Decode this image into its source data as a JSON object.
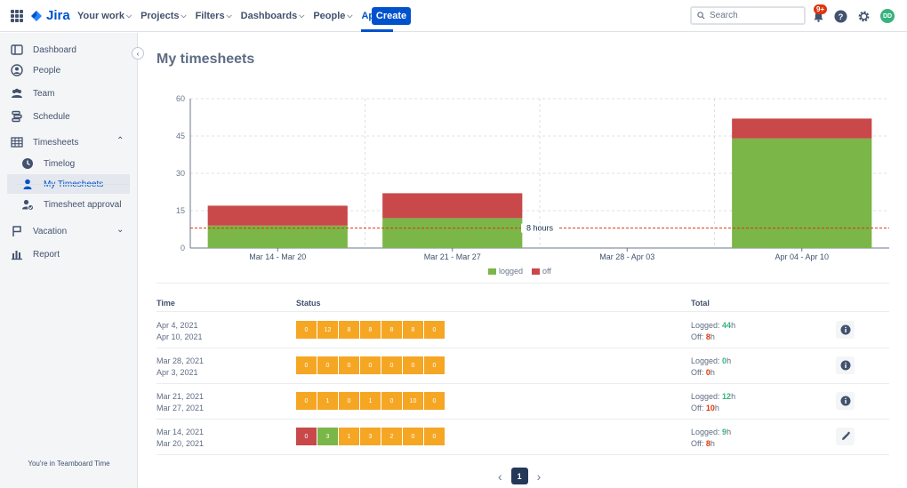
{
  "topbar": {
    "logo_text": "Jira",
    "nav": [
      {
        "label": "Your work",
        "chevron": true
      },
      {
        "label": "Projects",
        "chevron": true
      },
      {
        "label": "Filters",
        "chevron": true
      },
      {
        "label": "Dashboards",
        "chevron": true
      },
      {
        "label": "People",
        "chevron": true
      },
      {
        "label": "Apps",
        "chevron": true,
        "active": true
      }
    ],
    "create_label": "Create",
    "search_placeholder": "Search",
    "notification_badge": "9+",
    "avatar_initials": "DD"
  },
  "sidebar": {
    "items": [
      {
        "label": "Dashboard",
        "icon": "dashboard-icon"
      },
      {
        "label": "People",
        "icon": "person-circle-icon"
      },
      {
        "label": "Team",
        "icon": "team-icon"
      },
      {
        "label": "Schedule",
        "icon": "schedule-icon"
      },
      {
        "label": "Timesheets",
        "icon": "table-icon",
        "expanded": true
      },
      {
        "label": "Timelog",
        "icon": "clock-icon"
      },
      {
        "label": "My Timesheets",
        "icon": "person-icon",
        "selected": true
      },
      {
        "label": "Timesheet approval",
        "icon": "person-check-icon"
      },
      {
        "label": "Vacation",
        "icon": "flag-icon"
      },
      {
        "label": "Report",
        "icon": "bar-chart-icon"
      }
    ],
    "footer": "You're in Teamboard Time"
  },
  "main": {
    "title": "My timesheets"
  },
  "chart_data": {
    "type": "bar",
    "stacked": true,
    "categories": [
      "Mar 14 - Mar 20",
      "Mar 21 - Mar 27",
      "Mar 28 - Apr 03",
      "Apr 04 - Apr 10"
    ],
    "series": [
      {
        "name": "logged",
        "values": [
          9,
          12,
          0,
          44
        ],
        "color": "#7ab648"
      },
      {
        "name": "off",
        "values": [
          8,
          10,
          0,
          8
        ],
        "color": "#c9484a"
      }
    ],
    "yticks": [
      0,
      15,
      30,
      45,
      60
    ],
    "ylim": [
      0,
      60
    ],
    "reference_line": {
      "value": 8,
      "label": "8 hours",
      "color": "#de350b"
    },
    "grid": true,
    "legend": "bottom"
  },
  "table": {
    "headers": {
      "time": "Time",
      "status": "Status",
      "total": "Total"
    },
    "logged_prefix": "Logged: ",
    "off_prefix": "Off: ",
    "unit": "h",
    "rows": [
      {
        "start": "Apr 4, 2021",
        "end": "Apr 10, 2021",
        "days": [
          {
            "v": "0",
            "c": "#f5a623"
          },
          {
            "v": "12",
            "c": "#f5a623"
          },
          {
            "v": "8",
            "c": "#f5a623"
          },
          {
            "v": "8",
            "c": "#f5a623"
          },
          {
            "v": "8",
            "c": "#f5a623"
          },
          {
            "v": "8",
            "c": "#f5a623"
          },
          {
            "v": "0",
            "c": "#f5a623"
          }
        ],
        "logged": "44",
        "off": "8",
        "action_icon": "info-icon"
      },
      {
        "start": "Mar 28, 2021",
        "end": "Apr 3, 2021",
        "days": [
          {
            "v": "0",
            "c": "#f5a623"
          },
          {
            "v": "0",
            "c": "#f5a623"
          },
          {
            "v": "0",
            "c": "#f5a623"
          },
          {
            "v": "0",
            "c": "#f5a623"
          },
          {
            "v": "0",
            "c": "#f5a623"
          },
          {
            "v": "0",
            "c": "#f5a623"
          },
          {
            "v": "0",
            "c": "#f5a623"
          }
        ],
        "logged": "0",
        "off": "0",
        "action_icon": "info-icon"
      },
      {
        "start": "Mar 21, 2021",
        "end": "Mar 27, 2021",
        "days": [
          {
            "v": "0",
            "c": "#f5a623"
          },
          {
            "v": "1",
            "c": "#f5a623"
          },
          {
            "v": "0",
            "c": "#f5a623"
          },
          {
            "v": "1",
            "c": "#f5a623"
          },
          {
            "v": "0",
            "c": "#f5a623"
          },
          {
            "v": "10",
            "c": "#f5a623"
          },
          {
            "v": "0",
            "c": "#f5a623"
          }
        ],
        "logged": "12",
        "off": "10",
        "action_icon": "info-icon"
      },
      {
        "start": "Mar 14, 2021",
        "end": "Mar 20, 2021",
        "days": [
          {
            "v": "0",
            "c": "#c9484a"
          },
          {
            "v": "3",
            "c": "#7ab648"
          },
          {
            "v": "1",
            "c": "#f5a623"
          },
          {
            "v": "3",
            "c": "#f5a623"
          },
          {
            "v": "2",
            "c": "#f5a623"
          },
          {
            "v": "0",
            "c": "#f5a623"
          },
          {
            "v": "0",
            "c": "#f5a623"
          }
        ],
        "logged": "9",
        "off": "8",
        "action_icon": "edit-icon"
      }
    ]
  },
  "pagination": {
    "current": "1",
    "prev": "‹",
    "next": "›"
  }
}
